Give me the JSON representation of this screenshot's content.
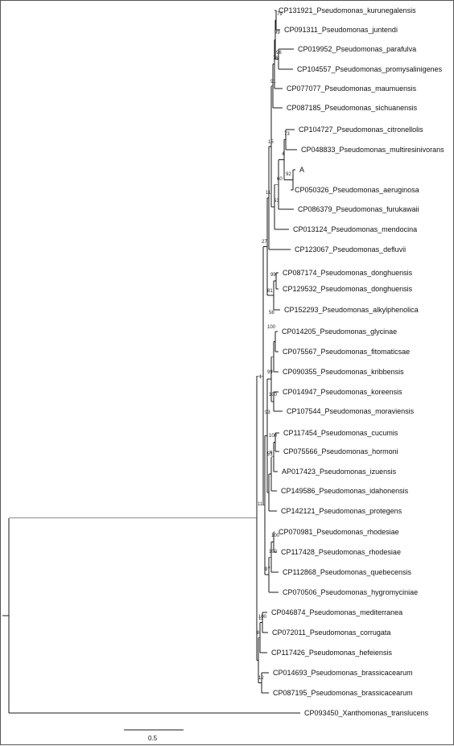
{
  "tree": {
    "leaves": [
      "CP131921_Pseudomonas_kurunegalensis",
      "CP091311_Pseudomonas_juntendi",
      "CP019952_Pseudomonas_parafulva",
      "CP104557_Pseudomonas_promysalinigenes",
      "CP077077_Pseudomonas_maumuensis",
      "CP087185_Pseudomonas_sichuanensis",
      "CP104727_Pseudomonas_citronellolis",
      "CP048833_Pseudomonas_multiresinivorans",
      "A",
      "CP050326_Pseudomonas_aeruginosa",
      "CP086379_Pseudomonas_furukawaii",
      "CP013124_Pseudomonas_mendocina",
      "CP123067_Pseudomonas_defluvii",
      "CP087174_Pseudomonas_donghuensis",
      "CP129532_Pseudomonas_donghuensis",
      "CP152293_Pseudomonas_alkylphenolica",
      "CP014205_Pseudomonas_glycinae",
      "CP075567_Pseudomonas_fitomaticsae",
      "CP090355_Pseudomonas_kribbensis",
      "CP014947_Pseudomonas_koreensis",
      "CP107544_Pseudomonas_moraviensis",
      "CP117454_Pseudomonas_cucumis",
      "CP075566_Pseudomonas_hormoni",
      "AP017423_Pseudomonas_izuensis",
      "CP149586_Pseudomonas_idahonensis",
      "CP142121_Pseudomonas_protegens",
      "CP070981_Pseudomonas_rhodesiae",
      "CP117428_Pseudomonas_rhodesiae",
      "CP112868_Pseudomonas_quebecensis",
      "CP070506_Pseudomonas_hygromyciniae",
      "CP046874_Pseudomonas_mediterranea",
      "CP072011_Pseudomonas_corrugata",
      "CP117426_Pseudomonas_hefeiensis",
      "CP014693_Pseudomonas_brassicacearum",
      "CP087195_Pseudomonas_brassicacearum",
      "CP093450_Xanthomonas_translucens"
    ],
    "support_values": [
      "79",
      "99",
      "96",
      "78",
      "91",
      "15",
      "73",
      "4",
      "92",
      "60",
      "53",
      "11",
      "27",
      "99",
      "81",
      "58",
      "100",
      "99",
      "100",
      "93",
      "100",
      "51",
      "6",
      "1",
      "11",
      "100",
      "100",
      "97",
      "100",
      "8",
      "11",
      "12"
    ],
    "scale_bar": {
      "label": "0.5",
      "value": 0.5
    }
  }
}
